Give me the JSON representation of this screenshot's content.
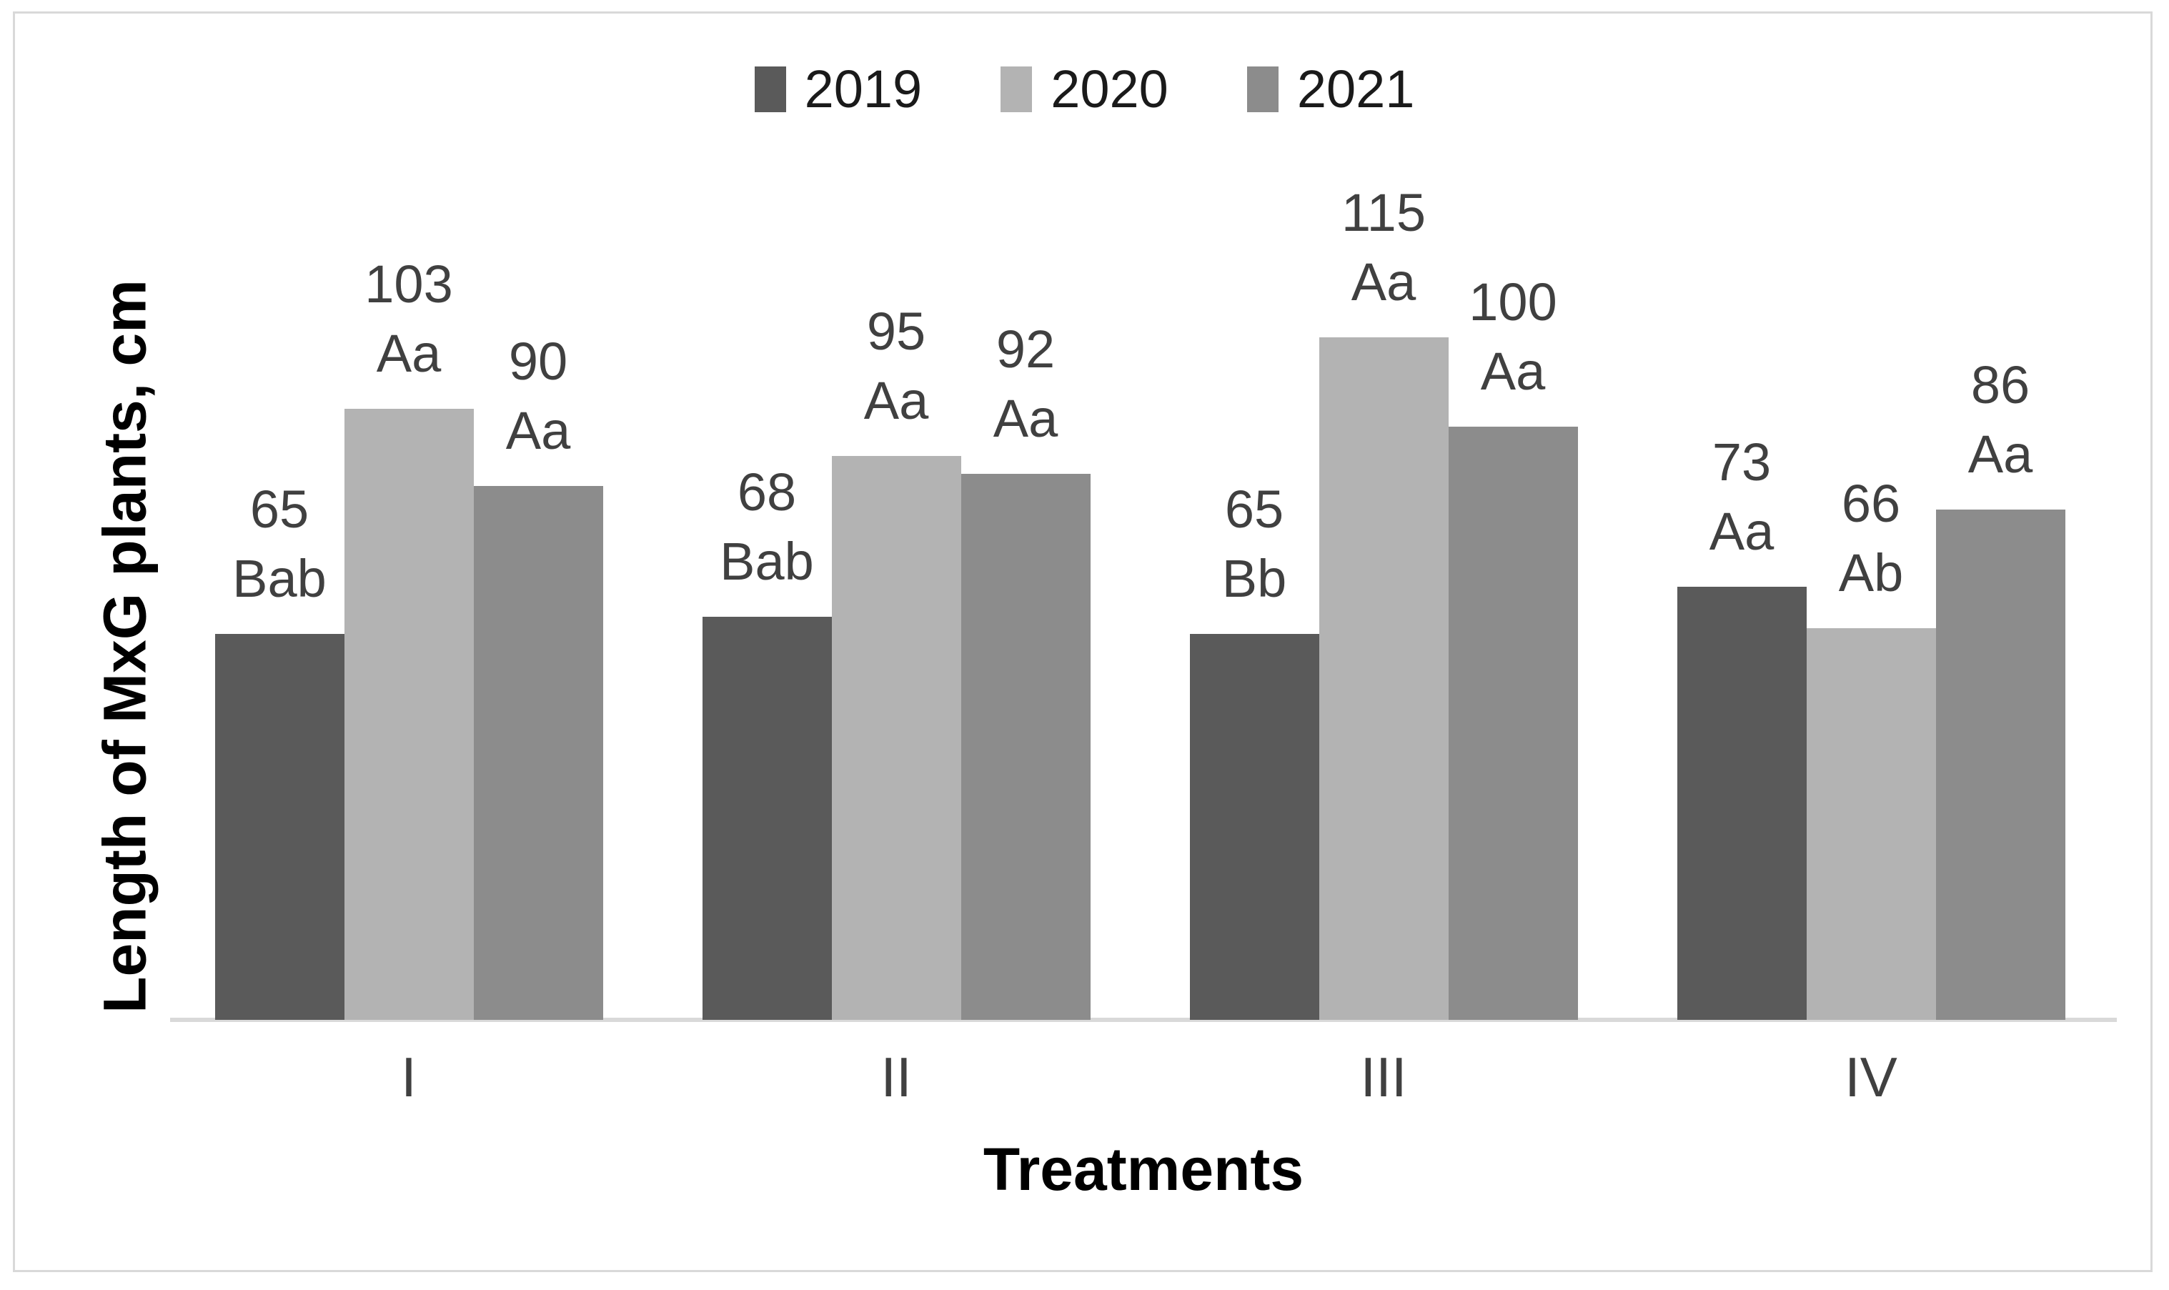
{
  "figure": {
    "background": "#ffffff",
    "border_color": "#d9d9d9",
    "axis_line_color": "#d9d9d9",
    "data_label_color": "#404040",
    "category_label_color": "#404040",
    "legend_text_color": "#1a1a1a"
  },
  "legend": {
    "items": [
      {
        "label": "2019",
        "color": "#5a5a5a"
      },
      {
        "label": "2020",
        "color": "#b3b3b3"
      },
      {
        "label": "2021",
        "color": "#8c8c8c"
      }
    ]
  },
  "axes": {
    "y_label": "Length of MxG plants, cm",
    "x_label": "Treatments"
  },
  "chart_data": {
    "type": "bar",
    "title": "",
    "xlabel": "Treatments",
    "ylabel": "Length of MxG plants, cm",
    "categories": [
      "I",
      "II",
      "III",
      "IV"
    ],
    "series": [
      {
        "name": "2019",
        "color": "#5a5a5a",
        "values": [
          65,
          68,
          65,
          73
        ],
        "stat_labels": [
          "Bab",
          "Bab",
          "Bb",
          "Aa"
        ]
      },
      {
        "name": "2020",
        "color": "#b3b3b3",
        "values": [
          103,
          95,
          115,
          66
        ],
        "stat_labels": [
          "Aa",
          "Aa",
          "Aa",
          "Ab"
        ]
      },
      {
        "name": "2021",
        "color": "#8c8c8c",
        "values": [
          90,
          92,
          100,
          86
        ],
        "stat_labels": [
          "Aa",
          "Aa",
          "Aa",
          "Aa"
        ]
      }
    ],
    "data_labels": "value over stat letter code, outside end of each bar",
    "ylim": [
      0,
      145
    ],
    "yticks_visible": false,
    "grid": false,
    "legend_position": "top-center"
  }
}
